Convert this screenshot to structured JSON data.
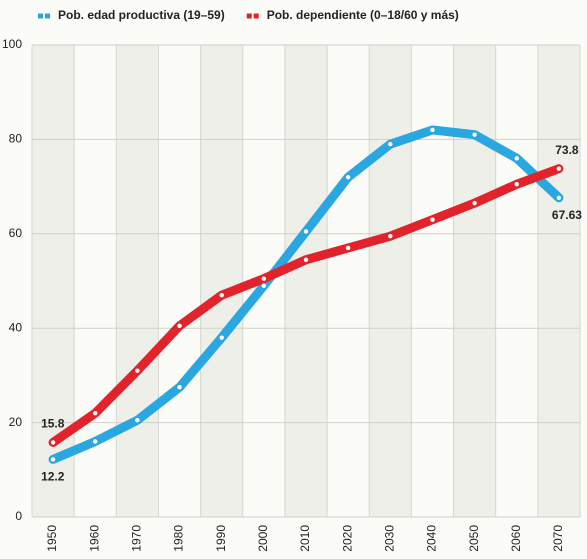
{
  "chart_data": {
    "type": "line",
    "categories": [
      "1950",
      "1960",
      "1970",
      "1980",
      "1990",
      "2000",
      "2010",
      "2020",
      "2030",
      "2040",
      "2050",
      "2060",
      "2070"
    ],
    "series": [
      {
        "name": "Pob. edad productiva (19–59)",
        "color": "#2aa7e1",
        "values": [
          12.2,
          16,
          20.5,
          27.5,
          38,
          49,
          60.5,
          72,
          79,
          82,
          81,
          76,
          67.63
        ],
        "value_labels": [
          "12.2",
          null,
          null,
          null,
          null,
          null,
          null,
          null,
          null,
          null,
          null,
          null,
          "67.63"
        ]
      },
      {
        "name": "Pob. dependiente (0–18/60 y más)",
        "color": "#e3232b",
        "values": [
          15.8,
          22,
          31,
          40.5,
          47,
          50.5,
          54.5,
          57,
          59.5,
          63,
          66.5,
          70.5,
          73.8
        ],
        "value_labels": [
          "15.8",
          null,
          null,
          null,
          null,
          null,
          null,
          null,
          null,
          null,
          null,
          null,
          "73.8"
        ]
      }
    ],
    "ylim": [
      0,
      100
    ],
    "yticks": [
      0,
      20,
      40,
      60,
      80,
      100
    ],
    "grid": true
  }
}
